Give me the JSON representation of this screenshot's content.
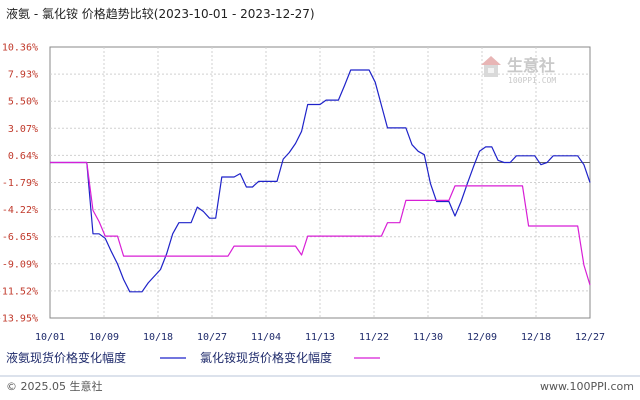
{
  "chart_data": {
    "type": "line",
    "title": "液氨 - 氯化铵 价格趋势比较(2023-10-01 - 2023-12-27)",
    "yticks": [
      "10.36%",
      "7.93%",
      "5.50%",
      "3.07%",
      "0.64%",
      "-1.79%",
      "-4.22%",
      "-6.65%",
      "-9.09%",
      "-11.52%",
      "-13.95%"
    ],
    "ylim": [
      -13.95,
      10.36
    ],
    "xticks": [
      "10/01",
      "10/09",
      "10/18",
      "10/27",
      "11/04",
      "11/13",
      "11/22",
      "11/30",
      "12/09",
      "12/18",
      "12/27"
    ],
    "x_days": [
      0,
      88
    ],
    "grid": true,
    "legend_position": "bottom",
    "series": [
      {
        "name": "液氨现货价格变化幅度",
        "color": "#1f23c9",
        "points": [
          [
            0,
            0
          ],
          [
            6,
            0
          ],
          [
            7,
            -6.4
          ],
          [
            8,
            -6.4
          ],
          [
            9,
            -6.8
          ],
          [
            10,
            -8.0
          ],
          [
            11,
            -9.1
          ],
          [
            12,
            -10.5
          ],
          [
            13,
            -11.6
          ],
          [
            15,
            -11.6
          ],
          [
            16,
            -10.8
          ],
          [
            18,
            -9.6
          ],
          [
            19,
            -8.2
          ],
          [
            20,
            -6.4
          ],
          [
            21,
            -5.4
          ],
          [
            23,
            -5.4
          ],
          [
            24,
            -4.0
          ],
          [
            25,
            -4.4
          ],
          [
            26,
            -5.0
          ],
          [
            27,
            -5.0
          ],
          [
            28,
            -1.3
          ],
          [
            30,
            -1.3
          ],
          [
            31,
            -1.0
          ],
          [
            32,
            -2.2
          ],
          [
            33,
            -2.2
          ],
          [
            34,
            -1.7
          ],
          [
            37,
            -1.7
          ],
          [
            38,
            0.3
          ],
          [
            39,
            0.9
          ],
          [
            40,
            1.7
          ],
          [
            41,
            2.8
          ],
          [
            42,
            5.2
          ],
          [
            44,
            5.2
          ],
          [
            45,
            5.6
          ],
          [
            47,
            5.6
          ],
          [
            48,
            6.9
          ],
          [
            49,
            8.3
          ],
          [
            52,
            8.3
          ],
          [
            53,
            7.2
          ],
          [
            55,
            3.1
          ],
          [
            58,
            3.1
          ],
          [
            59,
            1.6
          ],
          [
            60,
            1.0
          ],
          [
            61,
            0.7
          ],
          [
            62,
            -1.9
          ],
          [
            63,
            -3.5
          ],
          [
            65,
            -3.5
          ],
          [
            66,
            -4.8
          ],
          [
            67,
            -3.5
          ],
          [
            68,
            -1.9
          ],
          [
            69,
            -0.4
          ],
          [
            70,
            1.0
          ],
          [
            71,
            1.4
          ],
          [
            72,
            1.4
          ],
          [
            73,
            0.2
          ],
          [
            74,
            0.0
          ],
          [
            75,
            0.0
          ],
          [
            76,
            0.6
          ],
          [
            79,
            0.6
          ],
          [
            80,
            -0.2
          ],
          [
            81,
            0.0
          ],
          [
            82,
            0.6
          ],
          [
            86,
            0.6
          ],
          [
            87,
            -0.2
          ],
          [
            88,
            -1.8
          ]
        ]
      },
      {
        "name": "氯化铵现货价格变化幅度",
        "color": "#d81fd6",
        "points": [
          [
            0,
            0
          ],
          [
            6,
            0
          ],
          [
            7,
            -4.3
          ],
          [
            8,
            -5.3
          ],
          [
            9,
            -6.6
          ],
          [
            10,
            -6.6
          ],
          [
            11,
            -6.6
          ],
          [
            12,
            -8.4
          ],
          [
            22,
            -8.4
          ],
          [
            23,
            -8.4
          ],
          [
            24,
            -8.4
          ],
          [
            25,
            -8.4
          ],
          [
            26,
            -8.4
          ],
          [
            27,
            -8.4
          ],
          [
            28,
            -8.4
          ],
          [
            29,
            -8.4
          ],
          [
            30,
            -7.5
          ],
          [
            40,
            -7.5
          ],
          [
            41,
            -8.3
          ],
          [
            42,
            -6.6
          ],
          [
            54,
            -6.6
          ],
          [
            55,
            -5.4
          ],
          [
            57,
            -5.4
          ],
          [
            58,
            -3.4
          ],
          [
            65,
            -3.4
          ],
          [
            66,
            -2.1
          ],
          [
            77,
            -2.1
          ],
          [
            78,
            -5.7
          ],
          [
            85,
            -5.7
          ],
          [
            86,
            -5.7
          ],
          [
            87,
            -9.2
          ],
          [
            88,
            -11.0
          ]
        ]
      }
    ]
  },
  "watermark": {
    "brand": "生意社",
    "url": "100PPI.COM"
  },
  "footer": {
    "left": "© 2025.05 生意社",
    "right": "www.100PPI.com"
  }
}
